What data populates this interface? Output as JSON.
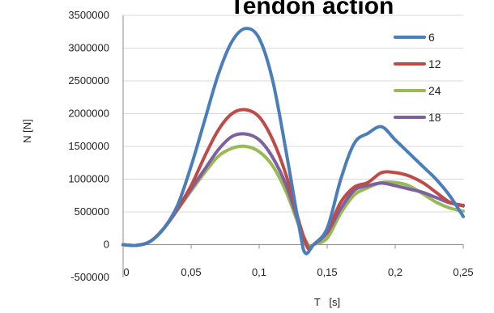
{
  "chart_data": {
    "type": "line",
    "title": "Tendon action",
    "xlabel": "T   [s]",
    "ylabel": "N [N]",
    "xlim": [
      0,
      0.25
    ],
    "ylim": [
      -500000,
      3500000
    ],
    "xticks": [
      0,
      0.05,
      0.1,
      0.15,
      0.2,
      0.25
    ],
    "xtick_labels": [
      "0",
      "0,05",
      "0,1",
      "0,15",
      "0,2",
      "0,25"
    ],
    "yticks": [
      -500000,
      0,
      500000,
      1000000,
      1500000,
      2000000,
      2500000,
      3000000,
      3500000
    ],
    "ytick_labels": [
      "-500000",
      "0",
      "500000",
      "1000000",
      "1500000",
      "2000000",
      "2500000",
      "3000000",
      "3500000"
    ],
    "grid": true,
    "legend": "top-right",
    "series": [
      {
        "name": "6",
        "color": "#4a7ebb",
        "points": [
          [
            0,
            0
          ],
          [
            0.01,
            -10000
          ],
          [
            0.02,
            50000
          ],
          [
            0.03,
            250000
          ],
          [
            0.04,
            600000
          ],
          [
            0.05,
            1200000
          ],
          [
            0.06,
            1900000
          ],
          [
            0.07,
            2600000
          ],
          [
            0.08,
            3100000
          ],
          [
            0.09,
            3300000
          ],
          [
            0.1,
            3150000
          ],
          [
            0.11,
            2500000
          ],
          [
            0.12,
            1400000
          ],
          [
            0.13,
            200000
          ],
          [
            0.134,
            -130000
          ],
          [
            0.14,
            0
          ],
          [
            0.15,
            250000
          ],
          [
            0.16,
            1000000
          ],
          [
            0.17,
            1550000
          ],
          [
            0.18,
            1700000
          ],
          [
            0.19,
            1800000
          ],
          [
            0.2,
            1600000
          ],
          [
            0.21,
            1400000
          ],
          [
            0.22,
            1200000
          ],
          [
            0.23,
            1000000
          ],
          [
            0.24,
            750000
          ],
          [
            0.25,
            430000
          ]
        ]
      },
      {
        "name": "12",
        "color": "#be4b48",
        "points": [
          [
            0,
            0
          ],
          [
            0.01,
            -10000
          ],
          [
            0.02,
            50000
          ],
          [
            0.03,
            250000
          ],
          [
            0.04,
            550000
          ],
          [
            0.05,
            900000
          ],
          [
            0.06,
            1350000
          ],
          [
            0.07,
            1750000
          ],
          [
            0.08,
            2000000
          ],
          [
            0.09,
            2060000
          ],
          [
            0.1,
            1950000
          ],
          [
            0.11,
            1600000
          ],
          [
            0.12,
            1050000
          ],
          [
            0.13,
            300000
          ],
          [
            0.136,
            -60000
          ],
          [
            0.14,
            0
          ],
          [
            0.15,
            200000
          ],
          [
            0.16,
            650000
          ],
          [
            0.17,
            880000
          ],
          [
            0.18,
            950000
          ],
          [
            0.19,
            1100000
          ],
          [
            0.2,
            1100000
          ],
          [
            0.21,
            1050000
          ],
          [
            0.22,
            950000
          ],
          [
            0.23,
            800000
          ],
          [
            0.24,
            650000
          ],
          [
            0.25,
            590000
          ]
        ]
      },
      {
        "name": "24",
        "color": "#98b954",
        "points": [
          [
            0,
            0
          ],
          [
            0.01,
            -10000
          ],
          [
            0.02,
            50000
          ],
          [
            0.03,
            250000
          ],
          [
            0.04,
            530000
          ],
          [
            0.05,
            820000
          ],
          [
            0.06,
            1100000
          ],
          [
            0.07,
            1350000
          ],
          [
            0.08,
            1470000
          ],
          [
            0.09,
            1500000
          ],
          [
            0.1,
            1420000
          ],
          [
            0.11,
            1200000
          ],
          [
            0.12,
            800000
          ],
          [
            0.13,
            250000
          ],
          [
            0.137,
            -30000
          ],
          [
            0.14,
            0
          ],
          [
            0.15,
            100000
          ],
          [
            0.16,
            480000
          ],
          [
            0.17,
            760000
          ],
          [
            0.18,
            870000
          ],
          [
            0.19,
            950000
          ],
          [
            0.2,
            950000
          ],
          [
            0.21,
            900000
          ],
          [
            0.22,
            780000
          ],
          [
            0.23,
            650000
          ],
          [
            0.24,
            560000
          ],
          [
            0.25,
            510000
          ]
        ]
      },
      {
        "name": "18",
        "color": "#7d60a0",
        "points": [
          [
            0,
            0
          ],
          [
            0.01,
            -10000
          ],
          [
            0.02,
            50000
          ],
          [
            0.03,
            250000
          ],
          [
            0.04,
            540000
          ],
          [
            0.05,
            850000
          ],
          [
            0.06,
            1150000
          ],
          [
            0.07,
            1450000
          ],
          [
            0.08,
            1650000
          ],
          [
            0.09,
            1690000
          ],
          [
            0.1,
            1600000
          ],
          [
            0.11,
            1330000
          ],
          [
            0.12,
            900000
          ],
          [
            0.13,
            280000
          ],
          [
            0.136,
            -40000
          ],
          [
            0.14,
            0
          ],
          [
            0.15,
            180000
          ],
          [
            0.16,
            550000
          ],
          [
            0.17,
            830000
          ],
          [
            0.18,
            900000
          ],
          [
            0.19,
            940000
          ],
          [
            0.2,
            900000
          ],
          [
            0.21,
            850000
          ],
          [
            0.22,
            800000
          ],
          [
            0.23,
            720000
          ],
          [
            0.24,
            640000
          ],
          [
            0.25,
            600000
          ]
        ]
      }
    ]
  }
}
